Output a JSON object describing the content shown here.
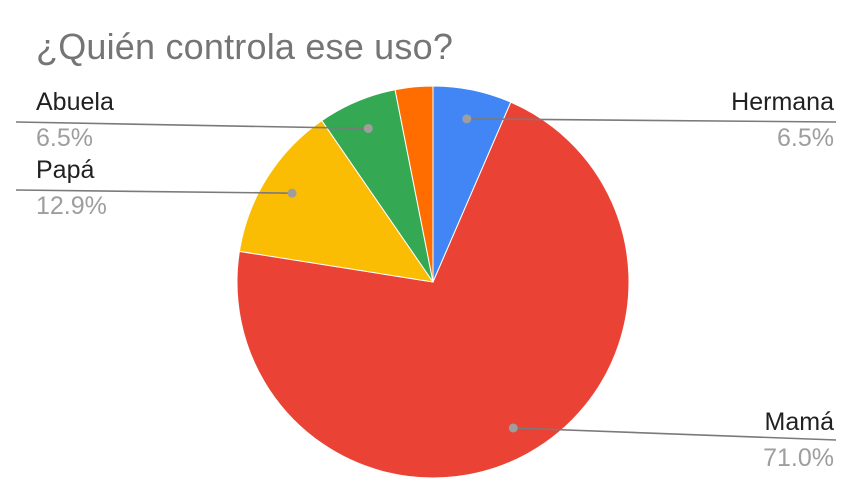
{
  "chart_data": {
    "type": "pie",
    "title": "¿Quién controla ese uso?",
    "slices": [
      {
        "name": "Hermana",
        "value": 6.5,
        "label": "6.5%",
        "color": "#4285f4"
      },
      {
        "name": "Mamá",
        "value": 71.0,
        "label": "71.0%",
        "color": "#ea4335"
      },
      {
        "name": "Papá",
        "value": 12.9,
        "label": "12.9%",
        "color": "#fbbc04"
      },
      {
        "name": "Abuela",
        "value": 6.5,
        "label": "6.5%",
        "color": "#34a853"
      },
      {
        "value": 3.1,
        "color": "#ff6d01"
      }
    ],
    "start_angle_deg": 0,
    "direction": "clockwise"
  }
}
